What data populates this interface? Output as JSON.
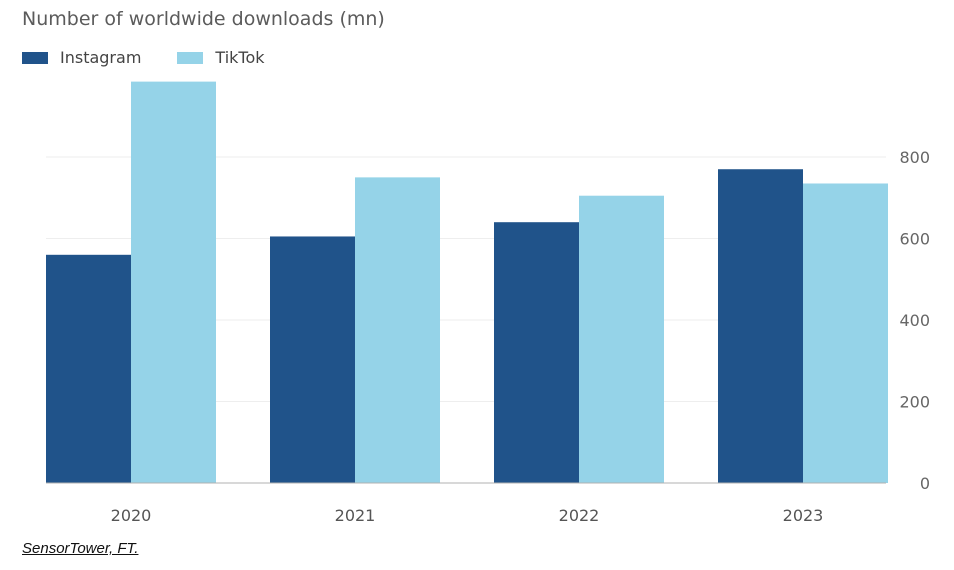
{
  "title": "Number of worldwide downloads (mn)",
  "source": "SensorTower, FT.",
  "chart_data": {
    "type": "bar",
    "categories": [
      "2020",
      "2021",
      "2022",
      "2023"
    ],
    "series": [
      {
        "name": "Instagram",
        "color": "#20538a",
        "values": [
          560,
          605,
          640,
          770
        ]
      },
      {
        "name": "TikTok",
        "color": "#95d3e8",
        "values": [
          985,
          750,
          705,
          735
        ]
      }
    ],
    "yticks": [
      0,
      200,
      400,
      600,
      800
    ],
    "ylim": [
      0,
      1000
    ],
    "y_axis_side": "right",
    "grid": true,
    "legend": "top-left"
  }
}
